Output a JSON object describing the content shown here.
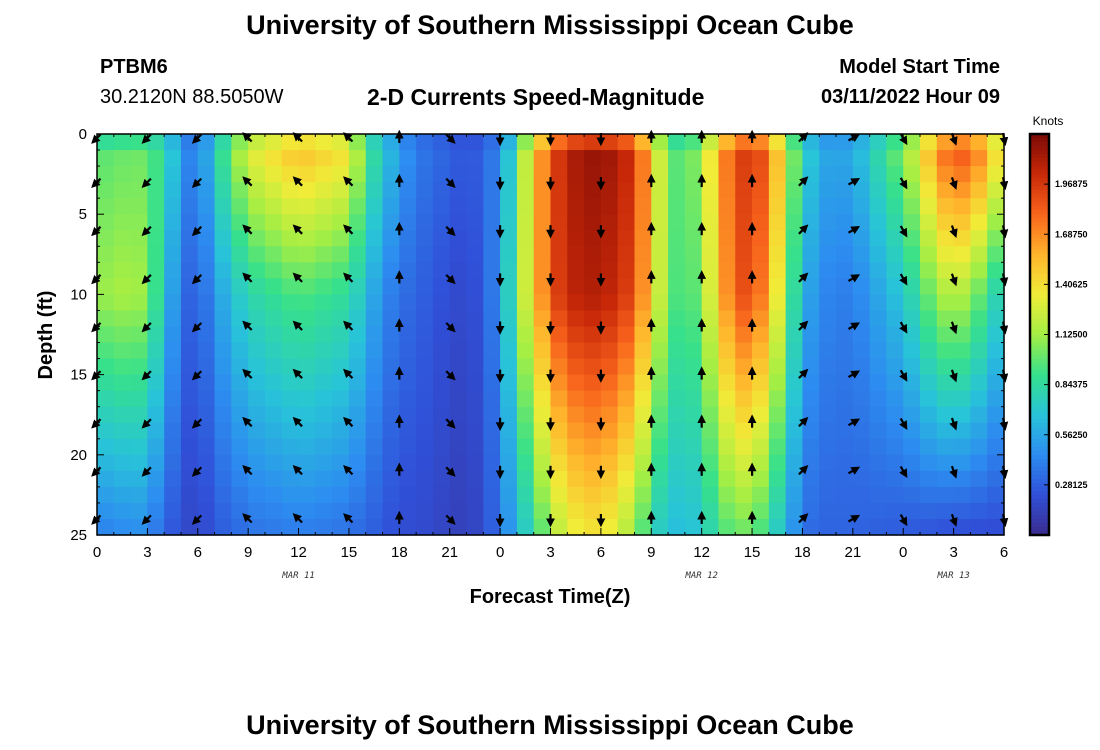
{
  "header": {
    "title": "University of Southern Mississippi Ocean Cube",
    "station": "PTBM6",
    "location": "30.2120N  88.5050W",
    "subtitle": "2-D Currents Speed-Magnitude",
    "model_start_label": "Model Start Time",
    "model_start_value": "03/11/2022 Hour 09"
  },
  "footer": {
    "title": "University of Southern Mississippi Ocean Cube"
  },
  "chart_data": {
    "type": "heatmap",
    "title": "2-D Currents Speed-Magnitude",
    "xlabel": "Forecast Time(Z)",
    "ylabel": "Depth (ft)",
    "x_ticks": [
      "0",
      "3",
      "6",
      "9",
      "12",
      "15",
      "18",
      "21",
      "0",
      "3",
      "6",
      "9",
      "12",
      "15",
      "18",
      "21",
      "0",
      "3",
      "6"
    ],
    "x_hours": [
      0,
      3,
      6,
      9,
      12,
      15,
      18,
      21,
      24,
      27,
      30,
      33,
      36,
      39,
      42,
      45,
      48,
      51,
      54
    ],
    "date_labels": [
      {
        "text": "MAR 11",
        "hour": 12
      },
      {
        "text": "MAR 12",
        "hour": 36
      },
      {
        "text": "MAR 13",
        "hour": 51
      }
    ],
    "y_ticks": [
      0,
      5,
      10,
      15,
      20,
      25
    ],
    "ylim": [
      0,
      25
    ],
    "xlim": [
      0,
      54
    ],
    "units": "Knots",
    "colorbar_ticks": [
      "0.28125",
      "0.56250",
      "0.84375",
      "1.12500",
      "1.40625",
      "1.68750",
      "1.96875"
    ],
    "colorbar_range": [
      0,
      2.25
    ],
    "colormap": [
      "#3b2c8f",
      "#3050d8",
      "#2d8cf0",
      "#28c4d8",
      "#36e08c",
      "#a4ee44",
      "#f0ec38",
      "#ffb42c",
      "#f8641c",
      "#c82808",
      "#7a0a06"
    ],
    "speed_profile_hours": [
      0,
      2,
      3,
      4,
      5,
      6,
      7,
      9,
      12,
      15,
      16,
      17,
      18,
      19,
      20,
      21,
      22,
      23,
      24,
      25,
      26,
      27,
      28,
      30,
      32,
      33,
      34,
      35,
      36,
      37,
      38,
      39,
      40,
      41,
      42,
      43,
      44,
      45,
      46,
      47,
      48,
      49,
      50,
      51,
      52,
      53,
      54
    ],
    "speed_at_surface": [
      0.95,
      1.0,
      1.0,
      0.85,
      0.55,
      0.35,
      0.8,
      1.35,
      1.6,
      1.45,
      1.0,
      0.75,
      0.55,
      0.4,
      0.35,
      0.3,
      0.25,
      0.3,
      0.45,
      0.9,
      1.5,
      1.85,
      2.1,
      2.2,
      2.0,
      1.5,
      1.0,
      0.95,
      1.15,
      1.6,
      1.9,
      2.0,
      1.8,
      1.3,
      0.8,
      0.6,
      0.55,
      0.6,
      0.75,
      0.95,
      1.1,
      1.4,
      1.75,
      1.95,
      1.9,
      1.7,
      1.3
    ],
    "speed_at_10ft": [
      1.1,
      1.15,
      1.1,
      0.7,
      0.35,
      0.25,
      0.5,
      0.8,
      0.95,
      0.85,
      0.65,
      0.45,
      0.35,
      0.3,
      0.25,
      0.2,
      0.18,
      0.25,
      0.5,
      1.0,
      1.5,
      1.85,
      2.05,
      2.1,
      1.9,
      1.45,
      1.0,
      0.9,
      1.05,
      1.5,
      1.85,
      1.9,
      1.6,
      1.1,
      0.6,
      0.45,
      0.4,
      0.4,
      0.5,
      0.6,
      0.7,
      0.9,
      1.1,
      1.2,
      1.1,
      0.9,
      0.7
    ],
    "speed_at_25ft": [
      0.4,
      0.45,
      0.45,
      0.3,
      0.2,
      0.15,
      0.25,
      0.35,
      0.4,
      0.35,
      0.3,
      0.25,
      0.2,
      0.2,
      0.18,
      0.15,
      0.12,
      0.2,
      0.35,
      0.6,
      0.85,
      1.1,
      1.3,
      1.4,
      1.1,
      0.8,
      0.65,
      0.65,
      0.7,
      0.9,
      1.0,
      1.0,
      0.85,
      0.6,
      0.35,
      0.3,
      0.3,
      0.3,
      0.28,
      0.28,
      0.25,
      0.25,
      0.22,
      0.2,
      0.2,
      0.2,
      0.2
    ],
    "vector_hours": [
      0,
      3,
      6,
      9,
      12,
      15,
      18,
      21,
      24,
      27,
      30,
      33,
      36,
      39,
      42,
      45,
      48,
      51,
      54
    ],
    "vector_depths_ft": [
      0,
      3,
      6,
      9,
      12,
      15,
      18,
      21,
      24
    ],
    "vector_direction_deg_by_hour": [
      225,
      225,
      225,
      315,
      315,
      315,
      0,
      135,
      180,
      180,
      180,
      0,
      0,
      0,
      45,
      60,
      150,
      160,
      170
    ]
  }
}
